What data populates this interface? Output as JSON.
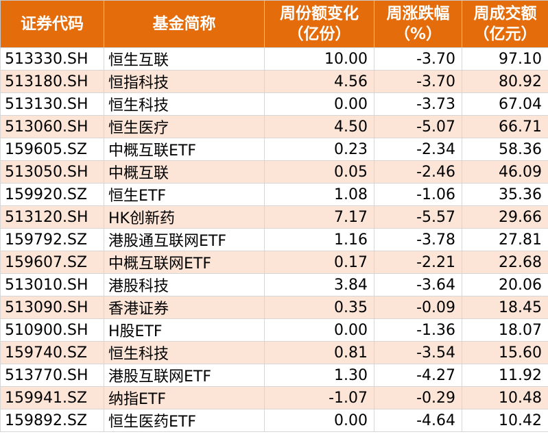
{
  "headers": [
    {
      "line1": "证券代码",
      "line2": ""
    },
    {
      "line1": "基金简称",
      "line2": ""
    },
    {
      "line1": "周份额变化",
      "line2": "（亿份）"
    },
    {
      "line1": "周涨跌幅",
      "line2": "（%）"
    },
    {
      "line1": "周成交额",
      "line2": "（亿元）"
    }
  ],
  "rows": [
    {
      "code": "513330.SH",
      "name": "恒生互联",
      "share_change": "10.00",
      "pct_change": "-3.70",
      "turnover": "97.10"
    },
    {
      "code": "513180.SH",
      "name": "恒指科技",
      "share_change": "4.56",
      "pct_change": "-3.70",
      "turnover": "80.92"
    },
    {
      "code": "513130.SH",
      "name": "恒生科技",
      "share_change": "0.00",
      "pct_change": "-3.73",
      "turnover": "67.04"
    },
    {
      "code": "513060.SH",
      "name": "恒生医疗",
      "share_change": "4.50",
      "pct_change": "-5.07",
      "turnover": "66.71"
    },
    {
      "code": "159605.SZ",
      "name": "中概互联ETF",
      "share_change": "0.23",
      "pct_change": "-2.34",
      "turnover": "58.36"
    },
    {
      "code": "513050.SH",
      "name": "中概互联",
      "share_change": "0.05",
      "pct_change": "-2.46",
      "turnover": "46.09"
    },
    {
      "code": "159920.SZ",
      "name": "恒生ETF",
      "share_change": "1.08",
      "pct_change": "-1.06",
      "turnover": "35.36"
    },
    {
      "code": "513120.SH",
      "name": "HK创新药",
      "share_change": "7.17",
      "pct_change": "-5.57",
      "turnover": "29.66"
    },
    {
      "code": "159792.SZ",
      "name": "港股通互联网ETF",
      "share_change": "1.16",
      "pct_change": "-3.78",
      "turnover": "27.81"
    },
    {
      "code": "159607.SZ",
      "name": "中概互联网ETF",
      "share_change": "0.17",
      "pct_change": "-2.21",
      "turnover": "22.68"
    },
    {
      "code": "513010.SH",
      "name": "港股科技",
      "share_change": "3.84",
      "pct_change": "-3.64",
      "turnover": "20.06"
    },
    {
      "code": "513090.SH",
      "name": "香港证券",
      "share_change": "0.35",
      "pct_change": "-0.09",
      "turnover": "18.45"
    },
    {
      "code": "510900.SH",
      "name": "H股ETF",
      "share_change": "0.00",
      "pct_change": "-1.36",
      "turnover": "18.07"
    },
    {
      "code": "159740.SZ",
      "name": "恒生科技",
      "share_change": "0.81",
      "pct_change": "-3.54",
      "turnover": "15.60"
    },
    {
      "code": "513770.SH",
      "name": "港股互联网ETF",
      "share_change": "1.30",
      "pct_change": "-4.27",
      "turnover": "11.92"
    },
    {
      "code": "159941.SZ",
      "name": "纳指ETF",
      "share_change": "-1.07",
      "pct_change": "-0.29",
      "turnover": "10.48"
    },
    {
      "code": "159892.SZ",
      "name": "恒生医药ETF",
      "share_change": "0.00",
      "pct_change": "-4.64",
      "turnover": "10.42"
    }
  ]
}
